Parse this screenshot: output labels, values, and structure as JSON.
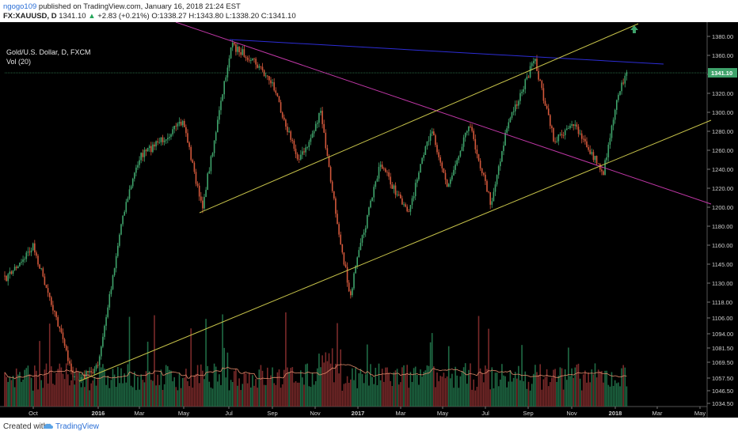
{
  "header": {
    "user": "ngogo109",
    "published": "published on TradingView.com, January 16, 2018 21:24 EST",
    "symbol": "FX:XAUUSD, D",
    "last": "1341.10",
    "change": "+2.83 (+0.21%)",
    "open": "O:1338.27",
    "high": "H:1343.80",
    "low": "L:1338.20",
    "close": "C:1341.10"
  },
  "legend": {
    "title": "Gold/U.S. Dollar, D, FXCM",
    "volume": "Vol (20)"
  },
  "footer": {
    "created": "Created with",
    "brand": "TradingView"
  },
  "colors": {
    "up": "#3fa36b",
    "down": "#d3583b",
    "trend_blue": "#2d2dd6",
    "trend_magenta": "#c238a8",
    "channel_yellow": "#c8c44a",
    "price_badge": "#3fa36b",
    "arrow": "#3fa36b"
  },
  "chart_data": {
    "type": "line",
    "title": "Gold/U.S. Dollar, D, FXCM",
    "x_tick_labels": [
      "Oct",
      "2016",
      "Mar",
      "May",
      "Jul",
      "Sep",
      "Nov",
      "2017",
      "Mar",
      "May",
      "Jul",
      "Sep",
      "Nov",
      "2018",
      "Mar",
      "May"
    ],
    "y_tick_labels": [
      "1380.00",
      "1360.00",
      "1340.00",
      "1320.00",
      "1300.00",
      "1280.00",
      "1260.00",
      "1240.00",
      "1220.00",
      "1200.00",
      "1180.00",
      "1160.00",
      "1145.00",
      "1130.00",
      "1118.00",
      "1106.00",
      "1094.00",
      "1081.50",
      "1069.50",
      "1057.50",
      "1046.50",
      "1034.50"
    ],
    "last_price_label": "1341.10",
    "price_scale": "log",
    "price_range": [
      1034.5,
      1390
    ],
    "price_anchors": [
      {
        "date": "Sep",
        "price": 1140
      },
      {
        "date": "Oct",
        "price": 1170
      },
      {
        "date": "Nov",
        "price": 1120
      },
      {
        "date": "Dec",
        "price": 1052
      },
      {
        "date": "2016",
        "price": 1065
      },
      {
        "date": "Feb",
        "price": 1200
      },
      {
        "date": "Mar",
        "price": 1255
      },
      {
        "date": "May",
        "price": 1290
      },
      {
        "date": "late May",
        "price": 1205
      },
      {
        "date": "Jul",
        "price": 1370
      },
      {
        "date": "Aug",
        "price": 1355
      },
      {
        "date": "Sep",
        "price": 1330
      },
      {
        "date": "early Oct",
        "price": 1255
      },
      {
        "date": "Oct",
        "price": 1260
      },
      {
        "date": "early Nov",
        "price": 1300
      },
      {
        "date": "Nov",
        "price": 1220
      },
      {
        "date": "Dec",
        "price": 1125
      },
      {
        "date": "2017",
        "price": 1160
      },
      {
        "date": "Feb",
        "price": 1250
      },
      {
        "date": "Mar",
        "price": 1200
      },
      {
        "date": "Apr",
        "price": 1285
      },
      {
        "date": "May",
        "price": 1225
      },
      {
        "date": "Jun",
        "price": 1290
      },
      {
        "date": "Jul",
        "price": 1210
      },
      {
        "date": "Aug",
        "price": 1285
      },
      {
        "date": "Sep",
        "price": 1355
      },
      {
        "date": "Oct",
        "price": 1270
      },
      {
        "date": "Nov",
        "price": 1290
      },
      {
        "date": "Dec",
        "price": 1240
      },
      {
        "date": "2018",
        "price": 1320
      },
      {
        "date": "Jan 16",
        "price": 1341.1
      }
    ],
    "volume_range": [
      0,
      150000
    ],
    "trendlines": [
      {
        "name": "blue resistance",
        "from": {
          "date": "Jul 2016",
          "price": 1375
        },
        "to": {
          "date": "Mar 2018",
          "price": 1350
        }
      },
      {
        "name": "magenta downtrend",
        "from": {
          "date": "Mar 2016",
          "price": 1390
        },
        "to": {
          "date": "Jun 2018",
          "price": 1210
        }
      },
      {
        "name": "upper channel",
        "from": {
          "date": "May 2016",
          "price": 1200
        },
        "to": {
          "date": "Feb 2018",
          "price": 1390
        }
      },
      {
        "name": "lower channel",
        "from": {
          "date": "Dec 2015",
          "price": 1052
        },
        "to": {
          "date": "Jun 2018",
          "price": 1290
        }
      }
    ]
  }
}
